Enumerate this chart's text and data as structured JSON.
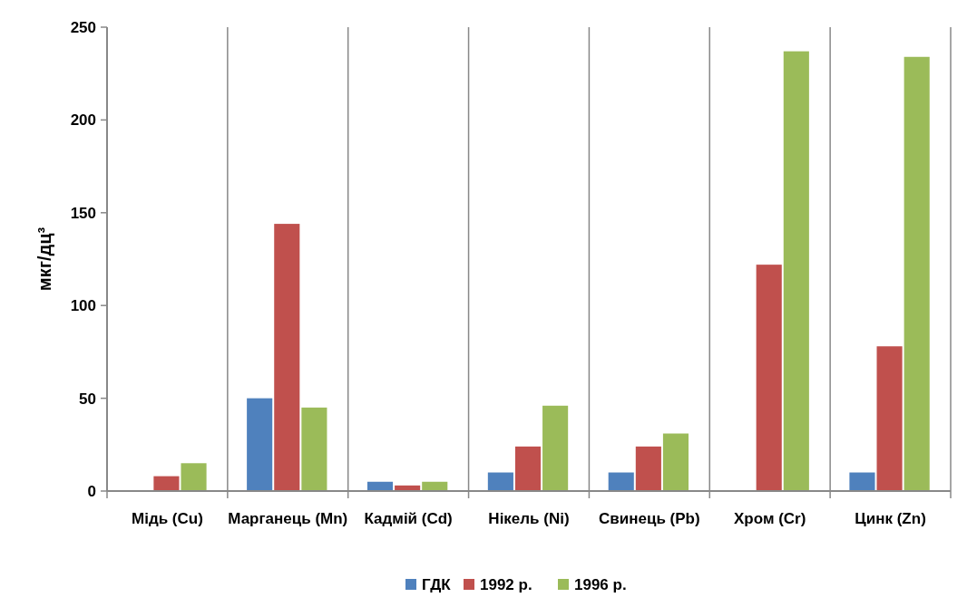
{
  "chart_data": {
    "type": "bar",
    "ylabel": "мкг/дц³",
    "categories": [
      "Мідь (Cu)",
      "Марганець (Mn)",
      "Кадмій (Cd)",
      "Нікель (Ni)",
      "Свинець (Pb)",
      "Хром (Cr)",
      "Цинк (Zn)"
    ],
    "series": [
      {
        "name": "ГДК",
        "color": "#4f81bd",
        "values": [
          0,
          50,
          5,
          10,
          10,
          0,
          10
        ]
      },
      {
        "name": "1992 р.",
        "color": "#c0504d",
        "values": [
          8,
          144,
          3,
          24,
          24,
          122,
          78
        ]
      },
      {
        "name": "1996 р.",
        "color": "#9bbb59",
        "values": [
          15,
          45,
          5,
          46,
          31,
          237,
          234
        ]
      }
    ],
    "ylim": [
      0,
      250
    ],
    "yticks": [
      0,
      50,
      100,
      150,
      200,
      250
    ],
    "grid": "x",
    "legend": "bottom"
  }
}
